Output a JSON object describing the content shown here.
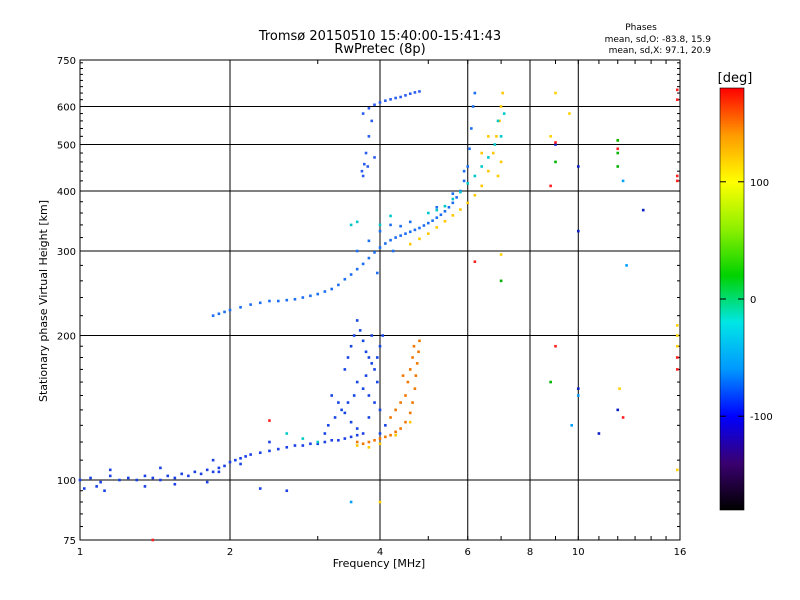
{
  "chart_data": {
    "type": "scatter",
    "title": "Tromsø 20150510 15:40:00-15:41:43",
    "subtitle": "RwPretec (8p)",
    "stats": {
      "header": "Phases",
      "line_o": "mean, sd,O: -83.8, 15.9",
      "line_x": "mean, sd,X:  97.1, 20.9"
    },
    "xlabel": "Frequency [MHz]",
    "ylabel": "Stationary phase Virtual Height [km]",
    "xscale": "log",
    "yscale": "log",
    "xlim": [
      1,
      16
    ],
    "ylim": [
      75,
      750
    ],
    "xticks": [
      1,
      2,
      4,
      6,
      8,
      10,
      16
    ],
    "xtick_labels": [
      "1",
      "2",
      "4",
      "6",
      "8",
      "10",
      "16"
    ],
    "yticks": [
      75,
      100,
      200,
      300,
      400,
      500,
      600,
      750
    ],
    "ytick_labels": [
      "75",
      "100",
      "200",
      "300",
      "400",
      "500",
      "600",
      "750"
    ],
    "grid": true,
    "colorbar": {
      "label": "[deg]",
      "range": [
        -180,
        180
      ],
      "ticks": [
        100,
        0,
        -100
      ],
      "tick_labels": [
        "100",
        "0",
        "-100"
      ],
      "colors": [
        "#000000",
        "#3a0070",
        "#0000ff",
        "#0098ff",
        "#00e6e6",
        "#00d200",
        "#8ef000",
        "#ffff00",
        "#ff9a00",
        "#ff0000"
      ]
    },
    "series": [
      {
        "color": "#1a40e6",
        "points": [
          [
            1.0,
            100
          ],
          [
            1.05,
            101
          ],
          [
            1.1,
            99
          ],
          [
            1.15,
            102
          ],
          [
            1.2,
            100
          ],
          [
            1.25,
            101
          ],
          [
            1.3,
            100
          ],
          [
            1.35,
            102
          ],
          [
            1.4,
            101
          ],
          [
            1.45,
            100
          ],
          [
            1.5,
            102
          ],
          [
            1.55,
            101
          ],
          [
            1.6,
            103
          ],
          [
            1.65,
            102
          ],
          [
            1.7,
            104
          ],
          [
            1.75,
            103
          ],
          [
            1.8,
            105
          ],
          [
            1.85,
            104
          ],
          [
            1.9,
            106
          ],
          [
            1.95,
            107
          ],
          [
            2.0,
            109
          ],
          [
            2.05,
            110
          ],
          [
            2.1,
            111
          ],
          [
            2.15,
            112
          ],
          [
            2.2,
            113
          ],
          [
            2.3,
            114
          ],
          [
            2.4,
            115
          ],
          [
            2.5,
            116
          ],
          [
            2.6,
            117
          ],
          [
            2.7,
            118
          ],
          [
            2.8,
            118
          ],
          [
            2.9,
            119
          ],
          [
            3.0,
            119
          ],
          [
            3.1,
            120
          ],
          [
            3.2,
            121
          ],
          [
            3.3,
            121
          ],
          [
            3.4,
            122
          ],
          [
            3.5,
            123
          ],
          [
            3.6,
            124
          ],
          [
            3.7,
            125
          ],
          [
            1.02,
            96
          ],
          [
            1.08,
            97
          ],
          [
            1.12,
            95
          ],
          [
            1.35,
            97
          ],
          [
            1.55,
            98
          ],
          [
            1.8,
            99
          ],
          [
            2.3,
            96
          ],
          [
            2.6,
            95
          ],
          [
            1.15,
            105
          ],
          [
            1.45,
            106
          ],
          [
            1.85,
            110
          ],
          [
            2.4,
            120
          ],
          [
            1.9,
            104
          ],
          [
            2.1,
            108
          ]
        ]
      },
      {
        "color": "#1c6ef2",
        "points": [
          [
            1.85,
            220
          ],
          [
            1.9,
            222
          ],
          [
            1.95,
            224
          ],
          [
            2.0,
            226
          ],
          [
            2.1,
            229
          ],
          [
            2.2,
            232
          ],
          [
            2.3,
            234
          ],
          [
            2.4,
            236
          ],
          [
            2.5,
            236
          ],
          [
            2.6,
            237
          ],
          [
            2.7,
            238
          ],
          [
            2.8,
            240
          ],
          [
            2.9,
            242
          ],
          [
            3.0,
            244
          ],
          [
            3.1,
            247
          ],
          [
            3.2,
            250
          ],
          [
            3.3,
            255
          ],
          [
            3.4,
            262
          ],
          [
            3.5,
            268
          ],
          [
            3.6,
            275
          ],
          [
            3.7,
            282
          ],
          [
            3.8,
            290
          ],
          [
            3.9,
            298
          ],
          [
            4.0,
            305
          ],
          [
            4.1,
            311
          ],
          [
            4.2,
            316
          ],
          [
            4.3,
            320
          ],
          [
            4.4,
            323
          ],
          [
            4.5,
            326
          ],
          [
            4.6,
            329
          ],
          [
            4.7,
            332
          ],
          [
            4.8,
            335
          ],
          [
            4.9,
            339
          ],
          [
            5.0,
            343
          ],
          [
            5.1,
            347
          ],
          [
            5.2,
            352
          ],
          [
            5.3,
            357
          ],
          [
            5.4,
            363
          ],
          [
            5.5,
            370
          ],
          [
            5.6,
            378
          ],
          [
            5.7,
            388
          ],
          [
            5.8,
            400
          ],
          [
            5.9,
            420
          ],
          [
            6.0,
            450
          ],
          [
            6.05,
            490
          ],
          [
            6.1,
            540
          ],
          [
            6.15,
            600
          ],
          [
            6.2,
            640
          ],
          [
            3.6,
            300
          ],
          [
            3.8,
            315
          ],
          [
            4.0,
            330
          ],
          [
            4.2,
            340
          ],
          [
            4.4,
            338
          ],
          [
            4.6,
            345
          ],
          [
            3.95,
            270
          ],
          [
            4.25,
            300
          ],
          [
            5.2,
            370
          ],
          [
            5.6,
            395
          ],
          [
            5.9,
            440
          ]
        ]
      },
      {
        "color": "#2a5cf0",
        "points": [
          [
            3.7,
            580
          ],
          [
            3.8,
            595
          ],
          [
            3.9,
            605
          ],
          [
            4.0,
            612
          ],
          [
            4.1,
            617
          ],
          [
            4.2,
            621
          ],
          [
            4.3,
            625
          ],
          [
            4.4,
            628
          ],
          [
            4.5,
            633
          ],
          [
            4.6,
            638
          ],
          [
            4.7,
            642
          ],
          [
            4.8,
            645
          ],
          [
            3.7,
            430
          ],
          [
            3.72,
            455
          ],
          [
            3.75,
            480
          ],
          [
            3.8,
            520
          ],
          [
            3.85,
            560
          ],
          [
            3.78,
            450
          ],
          [
            3.68,
            440
          ],
          [
            3.9,
            470
          ]
        ]
      },
      {
        "color": "#1546e4",
        "points": [
          [
            3.4,
            170
          ],
          [
            3.45,
            180
          ],
          [
            3.5,
            190
          ],
          [
            3.55,
            200
          ],
          [
            3.6,
            215
          ],
          [
            3.65,
            205
          ],
          [
            3.7,
            195
          ],
          [
            3.75,
            185
          ],
          [
            3.8,
            180
          ],
          [
            3.85,
            175
          ],
          [
            3.9,
            170
          ],
          [
            3.95,
            180
          ],
          [
            4.0,
            190
          ],
          [
            4.05,
            200
          ],
          [
            3.6,
            160
          ],
          [
            3.7,
            155
          ],
          [
            3.8,
            150
          ],
          [
            3.9,
            145
          ],
          [
            4.0,
            140
          ],
          [
            3.95,
            160
          ],
          [
            3.85,
            200
          ],
          [
            3.75,
            165
          ],
          [
            3.55,
            150
          ],
          [
            3.45,
            145
          ],
          [
            3.35,
            140
          ],
          [
            3.25,
            135
          ],
          [
            3.15,
            130
          ],
          [
            3.1,
            125
          ],
          [
            3.2,
            150
          ],
          [
            3.3,
            145
          ],
          [
            3.4,
            138
          ],
          [
            3.5,
            132
          ],
          [
            3.6,
            128
          ],
          [
            3.8,
            135
          ],
          [
            4.0,
            125
          ],
          [
            4.1,
            130
          ]
        ]
      },
      {
        "color": "#f07800",
        "points": [
          [
            3.6,
            120
          ],
          [
            3.7,
            119
          ],
          [
            3.8,
            120
          ],
          [
            3.9,
            121
          ],
          [
            4.0,
            122
          ],
          [
            4.1,
            123
          ],
          [
            4.2,
            124
          ],
          [
            4.3,
            126
          ],
          [
            4.4,
            128
          ],
          [
            4.5,
            132
          ],
          [
            4.6,
            138
          ],
          [
            4.65,
            145
          ],
          [
            4.7,
            155
          ],
          [
            4.72,
            165
          ],
          [
            4.75,
            175
          ],
          [
            4.78,
            185
          ],
          [
            4.8,
            195
          ],
          [
            4.55,
            160
          ],
          [
            4.6,
            170
          ],
          [
            4.5,
            150
          ],
          [
            4.45,
            165
          ],
          [
            4.65,
            180
          ],
          [
            4.4,
            145
          ],
          [
            4.3,
            140
          ],
          [
            4.2,
            135
          ],
          [
            4.68,
            190
          ]
        ]
      },
      {
        "color": "#ffc800",
        "points": [
          [
            3.6,
            118
          ],
          [
            3.8,
            117
          ],
          [
            4.0,
            119
          ],
          [
            4.3,
            124
          ],
          [
            4.6,
            132
          ],
          [
            4.6,
            310
          ],
          [
            4.8,
            318
          ],
          [
            5.0,
            326
          ],
          [
            5.2,
            336
          ],
          [
            5.4,
            346
          ],
          [
            5.6,
            356
          ],
          [
            5.8,
            366
          ],
          [
            6.0,
            378
          ],
          [
            6.2,
            392
          ],
          [
            6.4,
            410
          ],
          [
            6.6,
            440
          ],
          [
            6.75,
            480
          ],
          [
            6.85,
            520
          ],
          [
            6.95,
            560
          ],
          [
            7.0,
            600
          ],
          [
            7.05,
            640
          ],
          [
            6.6,
            520
          ],
          [
            6.4,
            480
          ],
          [
            6.9,
            430
          ],
          [
            7.0,
            460
          ]
        ]
      },
      {
        "color": "#00c8c8",
        "points": [
          [
            3.5,
            340
          ],
          [
            3.6,
            345
          ],
          [
            4.0,
            340
          ],
          [
            4.2,
            355
          ],
          [
            5.0,
            360
          ],
          [
            5.2,
            365
          ],
          [
            5.4,
            372
          ],
          [
            5.6,
            385
          ],
          [
            5.8,
            398
          ],
          [
            6.0,
            415
          ],
          [
            6.2,
            430
          ],
          [
            6.4,
            450
          ],
          [
            6.6,
            470
          ],
          [
            6.8,
            500
          ],
          [
            7.0,
            520
          ],
          [
            6.9,
            560
          ],
          [
            7.1,
            580
          ],
          [
            2.6,
            125
          ],
          [
            2.8,
            122
          ],
          [
            3.0,
            120
          ]
        ]
      },
      {
        "color": "#0a1ec8",
        "points": [
          [
            10.0,
            330
          ],
          [
            13.5,
            365
          ],
          [
            11.0,
            125
          ],
          [
            10.0,
            450
          ],
          [
            10.0,
            155
          ],
          [
            9.0,
            500
          ],
          [
            12.0,
            140
          ]
        ]
      },
      {
        "color": "#ff2020",
        "points": [
          [
            6.2,
            285
          ],
          [
            8.8,
            410
          ],
          [
            15.8,
            430
          ],
          [
            15.8,
            420
          ],
          [
            15.8,
            650
          ],
          [
            15.8,
            620
          ],
          [
            15.8,
            180
          ],
          [
            15.8,
            170
          ],
          [
            9.0,
            190
          ],
          [
            12.3,
            135
          ],
          [
            9.0,
            505
          ],
          [
            12.0,
            490
          ],
          [
            2.4,
            133
          ],
          [
            1.4,
            75
          ]
        ]
      },
      {
        "color": "#ffd200",
        "points": [
          [
            7.0,
            295
          ],
          [
            8.8,
            520
          ],
          [
            9.6,
            580
          ],
          [
            15.8,
            105
          ],
          [
            15.8,
            210
          ],
          [
            15.8,
            200
          ],
          [
            15.8,
            190
          ],
          [
            4.0,
            90
          ],
          [
            9.0,
            640
          ],
          [
            12.1,
            155
          ],
          [
            12.0,
            510
          ]
        ]
      },
      {
        "color": "#00b400",
        "points": [
          [
            7.0,
            260
          ],
          [
            8.8,
            160
          ],
          [
            12.0,
            510
          ],
          [
            12.0,
            480
          ],
          [
            9.0,
            460
          ],
          [
            12.0,
            450
          ]
        ]
      },
      {
        "color": "#00a0ff",
        "points": [
          [
            10.0,
            150
          ],
          [
            12.3,
            420
          ],
          [
            12.5,
            280
          ],
          [
            3.5,
            90
          ],
          [
            9.7,
            130
          ]
        ]
      }
    ]
  }
}
